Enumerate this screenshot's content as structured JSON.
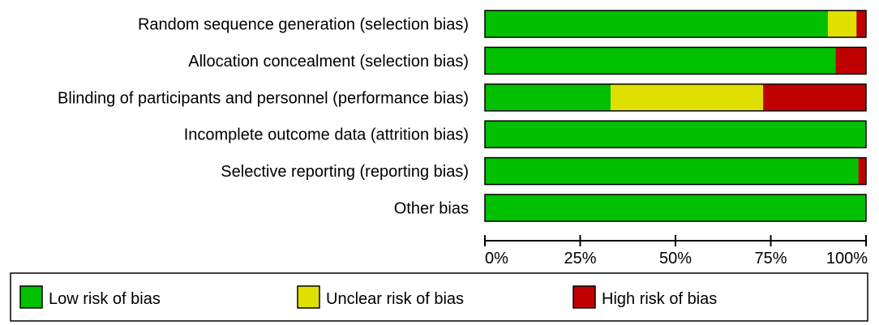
{
  "chart_data": {
    "type": "bar",
    "orientation": "horizontal",
    "stacked": true,
    "categories": [
      "Random sequence generation (selection bias)",
      "Allocation concealment (selection bias)",
      "Blinding of participants and personnel (performance bias)",
      "Incomplete outcome data (attrition bias)",
      "Selective reporting (reporting bias)",
      "Other bias"
    ],
    "series": [
      {
        "name": "Low risk of bias",
        "color": "#00c000",
        "values": [
          90,
          92,
          33,
          100,
          98,
          100
        ]
      },
      {
        "name": "Unclear risk of bias",
        "color": "#e0e000",
        "values": [
          7.5,
          0,
          40,
          0,
          0,
          0
        ]
      },
      {
        "name": "High risk of bias",
        "color": "#c00000",
        "values": [
          2.5,
          8,
          27,
          0,
          2,
          0
        ]
      }
    ],
    "xlim": [
      0,
      100
    ],
    "xticks": [
      "0%",
      "25%",
      "50%",
      "75%",
      "100%"
    ],
    "xtick_values": [
      0,
      25,
      50,
      75,
      100
    ],
    "legend_position": "bottom"
  }
}
